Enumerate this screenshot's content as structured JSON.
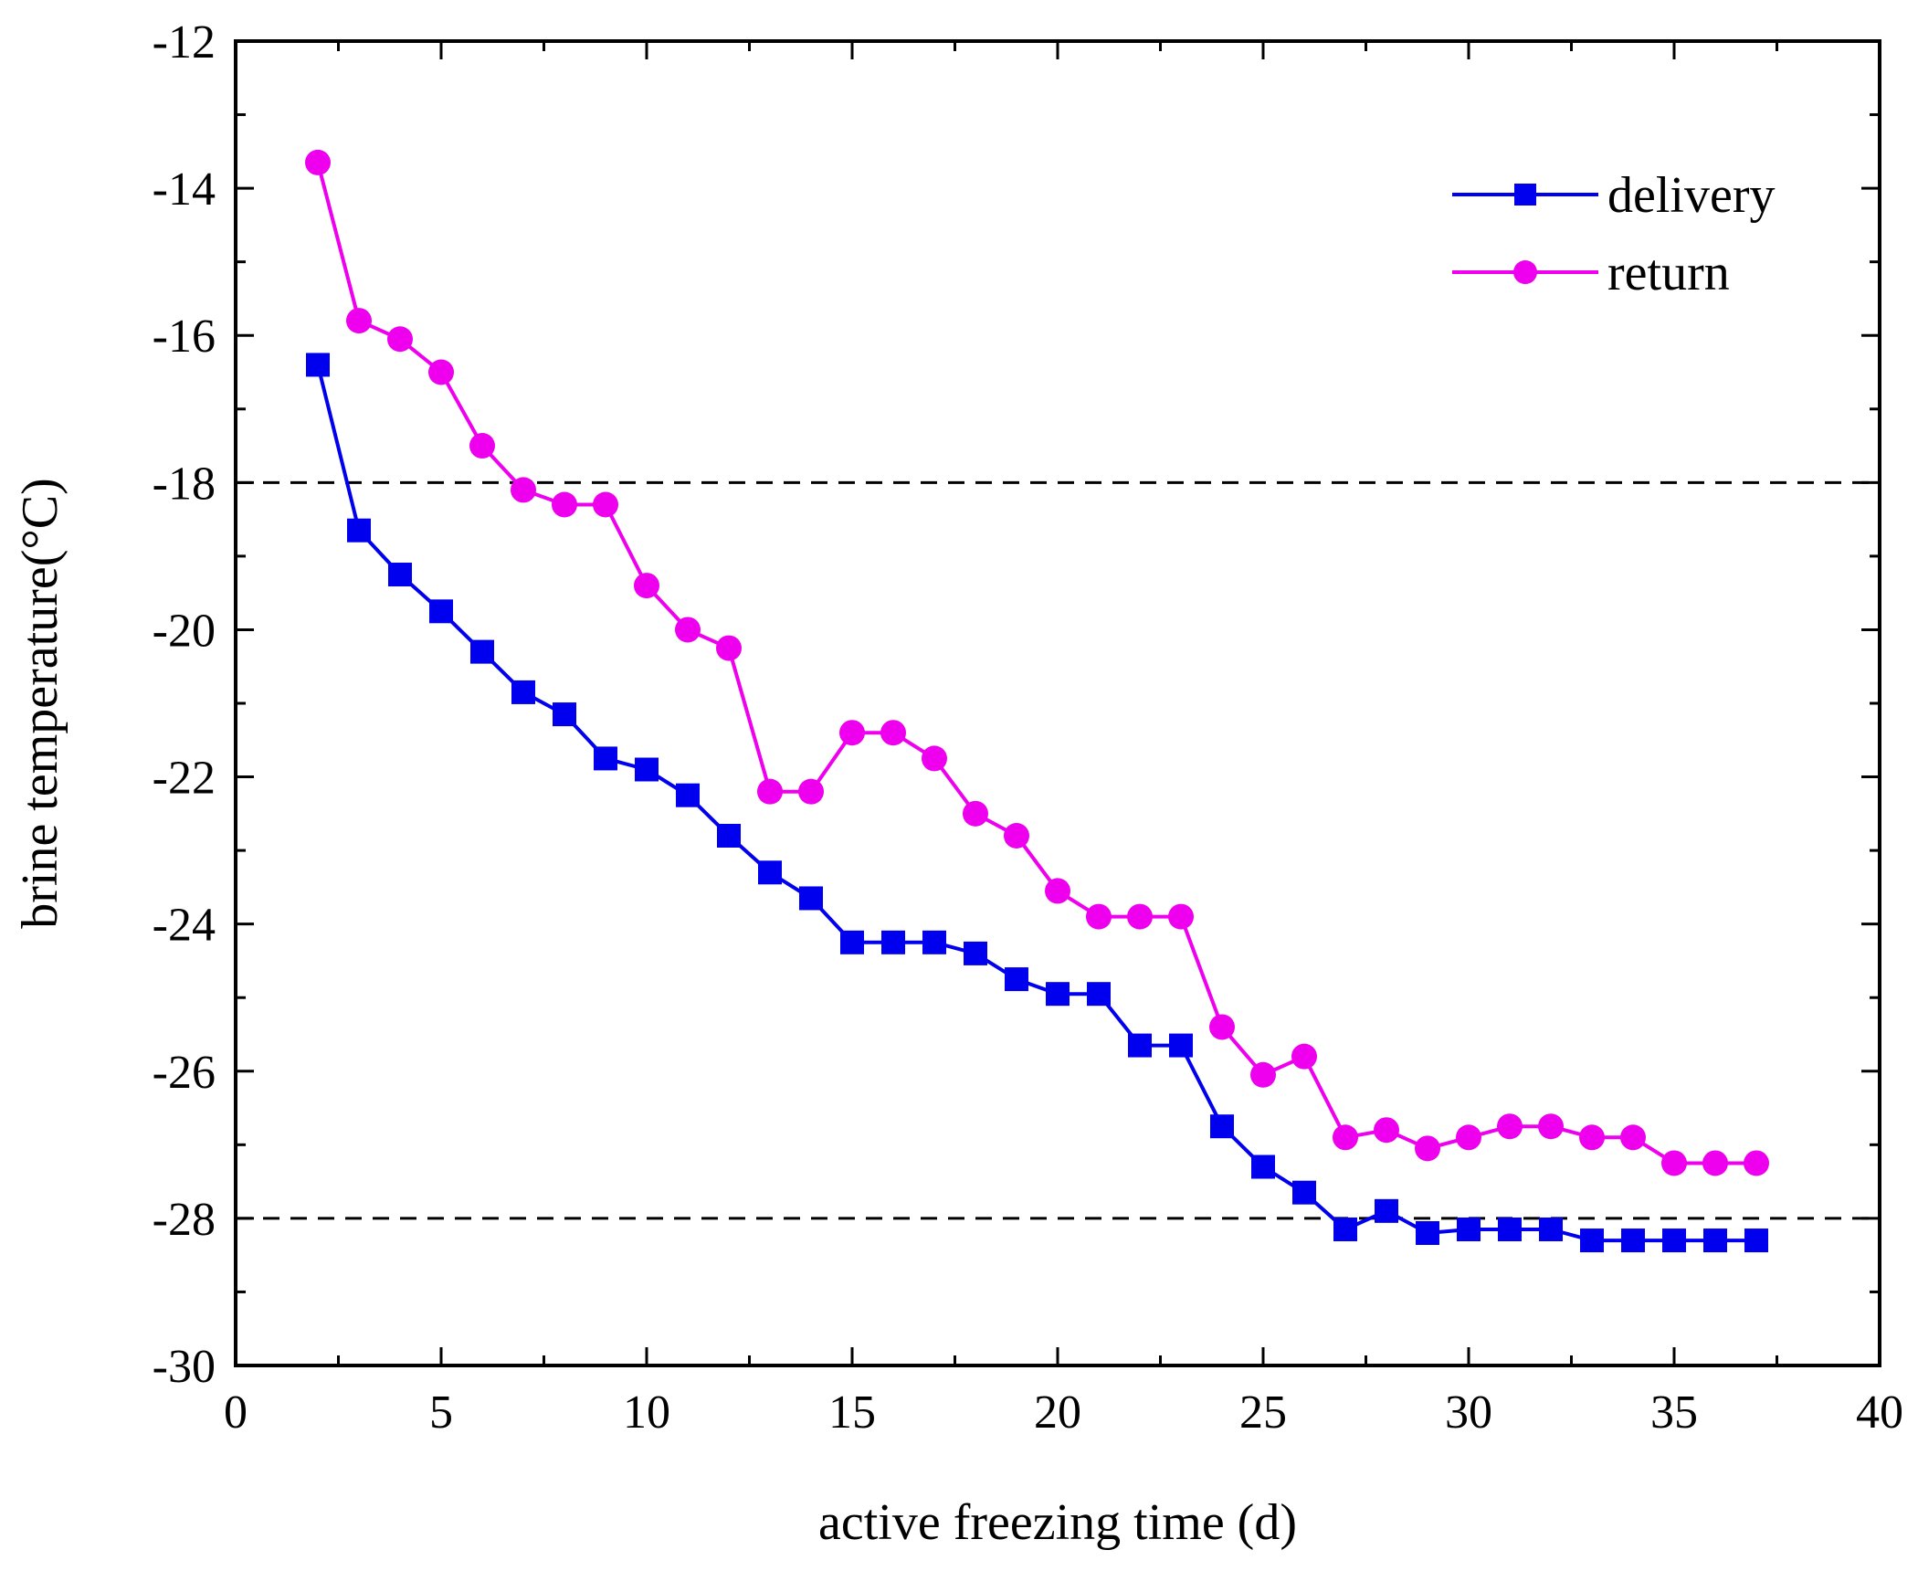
{
  "chart_data": {
    "type": "line",
    "title": "",
    "xlabel": "active freezing time (d)",
    "ylabel": "brine temperature(°C)",
    "xlim": [
      0,
      40
    ],
    "ylim": [
      -30,
      -12
    ],
    "xticks": [
      0,
      5,
      10,
      15,
      20,
      25,
      30,
      35,
      40
    ],
    "yticks": [
      -30,
      -28,
      -26,
      -24,
      -22,
      -20,
      -18,
      -16,
      -14,
      -12
    ],
    "xtick_labels": [
      "0",
      "5",
      "10",
      "15",
      "20",
      "25",
      "30",
      "35",
      "40"
    ],
    "ytick_labels": [
      "-30",
      "-28",
      "-26",
      "-24",
      "-22",
      "-20",
      "-18",
      "-16",
      "-14",
      "-12"
    ],
    "reference_lines": [
      -18,
      -28
    ],
    "legend_position": "top-right",
    "x": [
      2,
      3,
      4,
      5,
      6,
      7,
      8,
      9,
      10,
      11,
      12,
      13,
      14,
      15,
      16,
      17,
      18,
      19,
      20,
      21,
      22,
      23,
      24,
      25,
      26,
      27,
      28,
      29,
      30,
      31,
      32,
      33,
      34,
      35,
      36,
      37
    ],
    "series": [
      {
        "name": "delivery",
        "color": "#0000ee",
        "marker": "square",
        "values": [
          -16.4,
          -18.65,
          -19.25,
          -19.75,
          -20.3,
          -20.85,
          -21.15,
          -21.75,
          -21.9,
          -22.25,
          -22.8,
          -23.3,
          -23.65,
          -24.25,
          -24.25,
          -24.25,
          -24.4,
          -24.75,
          -24.95,
          -24.95,
          -25.65,
          -25.65,
          -26.75,
          -27.3,
          -27.65,
          -28.15,
          -27.9,
          -28.2,
          -28.15,
          -28.15,
          -28.15,
          -28.3,
          -28.3,
          -28.3,
          -28.3,
          -28.3
        ]
      },
      {
        "name": "return",
        "color": "#ee00ee",
        "marker": "circle",
        "values": [
          -13.65,
          -15.8,
          -16.05,
          -16.5,
          -17.5,
          -18.1,
          -18.3,
          -18.3,
          -19.4,
          -20.0,
          -20.25,
          -22.2,
          -22.2,
          -21.4,
          -21.4,
          -21.75,
          -22.5,
          -22.8,
          -23.55,
          -23.9,
          -23.9,
          -23.9,
          -25.4,
          -26.05,
          -25.8,
          -26.9,
          -26.8,
          -27.05,
          -26.9,
          -26.75,
          -26.75,
          -26.9,
          -26.9,
          -27.25,
          -27.25,
          -27.25
        ]
      }
    ]
  }
}
